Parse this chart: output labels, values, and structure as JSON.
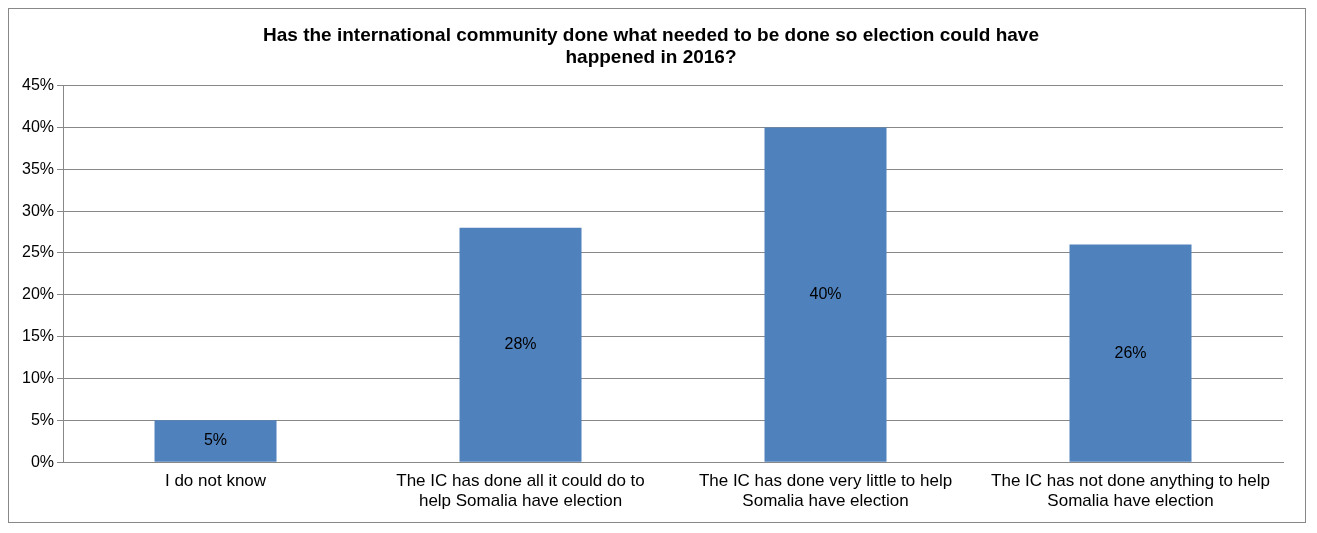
{
  "chart_data": {
    "type": "bar",
    "title": "Has the international community done what needed to be done so election could have happened in 2016?",
    "categories": [
      "I do not know",
      "The IC has done all it could do to help Somalia have election",
      "The IC has done very little to help Somalia have election",
      "The IC has not done anything to help Somalia have election"
    ],
    "values": [
      5,
      28,
      40,
      26
    ],
    "color": "#4f81bd",
    "value_labels": [
      "5%",
      "28%",
      "40%",
      "26%"
    ],
    "ylim": [
      0,
      45
    ],
    "yticks": [
      {
        "value": 0,
        "label": "0%"
      },
      {
        "value": 5,
        "label": "5%"
      },
      {
        "value": 10,
        "label": "10%"
      },
      {
        "value": 15,
        "label": "15%"
      },
      {
        "value": 20,
        "label": "20%"
      },
      {
        "value": 25,
        "label": "25%"
      },
      {
        "value": 30,
        "label": "30%"
      },
      {
        "value": 35,
        "label": "35%"
      },
      {
        "value": 40,
        "label": "40%"
      },
      {
        "value": 45,
        "label": "45%"
      }
    ],
    "grid": "y",
    "legend": false
  }
}
